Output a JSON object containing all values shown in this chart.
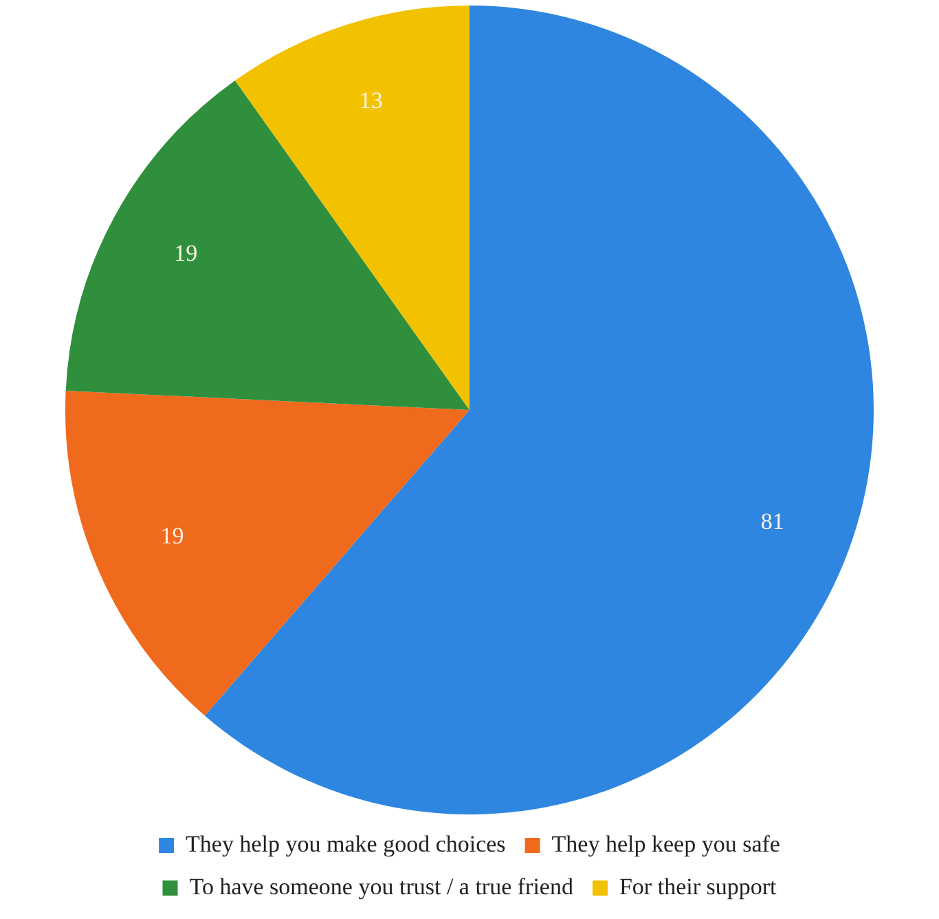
{
  "chart_data": {
    "type": "pie",
    "categories": [
      "They help you make good choices",
      "They help keep you safe",
      "To have someone you trust / a true friend",
      "For their support"
    ],
    "values": [
      81,
      19,
      19,
      13
    ],
    "colors": [
      "#2e86e0",
      "#f06a1e",
      "#2f8f3c",
      "#f2c200"
    ],
    "data_labels": true,
    "legend": "bottom"
  }
}
